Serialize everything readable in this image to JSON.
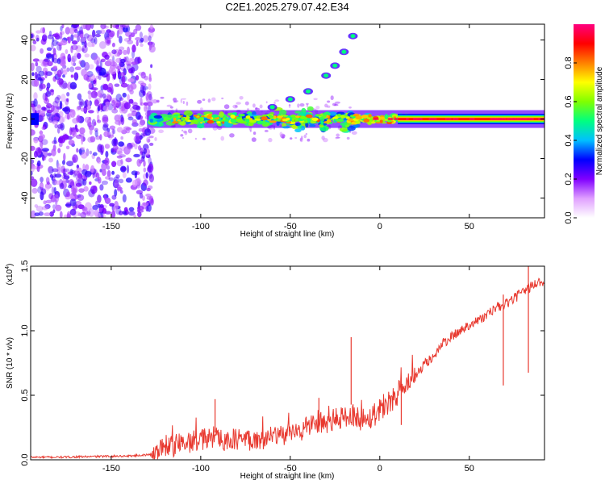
{
  "title": "C2E1.2025.279.07.42.E34",
  "chart_data": [
    {
      "type": "heatmap",
      "name": "spectrogram",
      "xlabel": "Height of straight line (km)",
      "ylabel": "Frequency (Hz)",
      "xlim": [
        -195,
        92
      ],
      "ylim": [
        -50,
        48
      ],
      "xticks": [
        -150,
        -100,
        -50,
        0,
        50
      ],
      "yticks": [
        -40,
        -20,
        0,
        20,
        40
      ],
      "colorbar": {
        "label": "Normalized spectral amplitude",
        "range": [
          0.0,
          1.0
        ],
        "ticks": [
          0.0,
          0.2,
          0.4,
          0.6,
          0.8
        ],
        "colors": [
          "#ffffff",
          "#e0a0ff",
          "#8000ff",
          "#0000ff",
          "#00c0ff",
          "#00ff80",
          "#80ff00",
          "#ffff00",
          "#ff8000",
          "#ff0000",
          "#ff0080"
        ]
      },
      "noise_region_x": [
        -195,
        -127
      ],
      "main_line": {
        "frequency": 0,
        "x_range": [
          -130,
          92
        ]
      },
      "rising_feature": {
        "x": [
          -60,
          -50,
          -40,
          -30,
          -25,
          -20,
          -15
        ],
        "frequency": [
          6,
          10,
          14,
          22,
          27,
          34,
          42
        ]
      }
    },
    {
      "type": "line",
      "name": "snr",
      "xlabel": "Height of straight line (km)",
      "ylabel": "SNR (10 * v/v)",
      "yscale_label": "(x10",
      "yscale_exp": "4",
      "yscale_close": ")",
      "xlim": [
        -195,
        92
      ],
      "ylim": [
        0,
        1.5
      ],
      "xticks": [
        -150,
        -100,
        -50,
        0,
        50
      ],
      "yticks": [
        0.0,
        0.5,
        1.0,
        1.5
      ],
      "ytick_labels": [
        "0.0",
        "0.5",
        "1.0",
        "1.5"
      ],
      "color": "#e8392f",
      "x": [
        -195,
        -180,
        -160,
        -140,
        -128,
        -120,
        -110,
        -100,
        -95,
        -90,
        -85,
        -80,
        -70,
        -60,
        -55,
        -50,
        -45,
        -40,
        -35,
        -30,
        -25,
        -20,
        -15,
        -10,
        -5,
        0,
        5,
        10,
        15,
        20,
        25,
        30,
        35,
        40,
        45,
        50,
        55,
        60,
        65,
        70,
        75,
        80,
        85,
        88,
        92
      ],
      "y": [
        0.02,
        0.02,
        0.025,
        0.03,
        0.04,
        0.09,
        0.13,
        0.15,
        0.17,
        0.19,
        0.14,
        0.16,
        0.16,
        0.17,
        0.19,
        0.2,
        0.22,
        0.26,
        0.3,
        0.28,
        0.31,
        0.33,
        0.35,
        0.31,
        0.33,
        0.4,
        0.45,
        0.52,
        0.55,
        0.65,
        0.74,
        0.8,
        0.9,
        0.95,
        1.0,
        1.05,
        1.08,
        1.12,
        1.18,
        1.2,
        1.25,
        1.3,
        1.35,
        1.37,
        1.38
      ],
      "spikes": [
        {
          "x": -92,
          "y": 0.47
        },
        {
          "x": -34,
          "y": 0.48
        },
        {
          "x": -16,
          "y": 0.95
        },
        {
          "x": 12,
          "y": 0.6
        },
        {
          "x": 69,
          "y": 1.28
        },
        {
          "x": 83,
          "y": 1.5
        }
      ]
    }
  ]
}
